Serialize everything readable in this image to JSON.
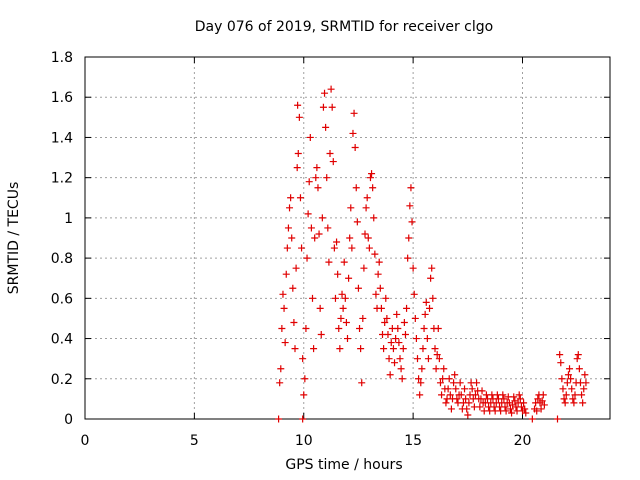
{
  "chart_data": {
    "type": "scatter",
    "title": "Day 076 of 2019, SRMTID for receiver clgo",
    "xlabel": "GPS time / hours",
    "ylabel": "SRMTID / TECUs",
    "xlim": [
      0,
      24
    ],
    "ylim": [
      0,
      1.8
    ],
    "xticks": [
      0,
      5,
      10,
      15,
      20
    ],
    "xtick_labels": [
      "0",
      "5",
      "10",
      "15",
      "20"
    ],
    "yticks": [
      0,
      0.2,
      0.4,
      0.6,
      0.8,
      1.0,
      1.2,
      1.4,
      1.6,
      1.8
    ],
    "ytick_labels": [
      "0",
      "0.2",
      "0.4",
      "0.6",
      "0.8",
      "1",
      "1.2",
      "1.4",
      "1.6",
      "1.8"
    ],
    "grid": true,
    "marker": "+",
    "color": "#e00000",
    "series": [
      {
        "name": "SRMTID",
        "points": [
          [
            8.85,
            0.0
          ],
          [
            9.95,
            0.0
          ],
          [
            20.45,
            0.0
          ],
          [
            21.6,
            0.0
          ],
          [
            8.9,
            0.18
          ],
          [
            8.95,
            0.25
          ],
          [
            9.0,
            0.45
          ],
          [
            9.05,
            0.62
          ],
          [
            9.1,
            0.55
          ],
          [
            9.15,
            0.38
          ],
          [
            9.2,
            0.72
          ],
          [
            9.25,
            0.85
          ],
          [
            9.3,
            0.95
          ],
          [
            9.35,
            1.05
          ],
          [
            9.4,
            1.1
          ],
          [
            9.45,
            0.9
          ],
          [
            9.5,
            0.65
          ],
          [
            9.55,
            0.48
          ],
          [
            9.6,
            0.35
          ],
          [
            9.65,
            0.75
          ],
          [
            9.7,
            1.25
          ],
          [
            9.75,
            1.32
          ],
          [
            9.72,
            1.56
          ],
          [
            9.8,
            1.5
          ],
          [
            9.85,
            1.1
          ],
          [
            9.9,
            0.85
          ],
          [
            9.95,
            0.3
          ],
          [
            10.0,
            0.12
          ],
          [
            10.05,
            0.2
          ],
          [
            10.1,
            0.45
          ],
          [
            10.15,
            0.8
          ],
          [
            10.2,
            1.02
          ],
          [
            10.25,
            1.18
          ],
          [
            10.3,
            1.4
          ],
          [
            10.35,
            0.95
          ],
          [
            10.4,
            0.6
          ],
          [
            10.45,
            0.35
          ],
          [
            10.5,
            0.9
          ],
          [
            10.55,
            1.2
          ],
          [
            10.6,
            1.25
          ],
          [
            10.65,
            1.15
          ],
          [
            10.7,
            0.92
          ],
          [
            10.75,
            0.55
          ],
          [
            10.8,
            0.42
          ],
          [
            10.85,
            1.0
          ],
          [
            10.9,
            1.55
          ],
          [
            10.95,
            1.62
          ],
          [
            11.0,
            1.45
          ],
          [
            11.05,
            1.2
          ],
          [
            11.1,
            0.95
          ],
          [
            11.15,
            0.78
          ],
          [
            11.2,
            1.32
          ],
          [
            11.25,
            1.64
          ],
          [
            11.3,
            1.55
          ],
          [
            11.35,
            1.28
          ],
          [
            11.4,
            0.85
          ],
          [
            11.45,
            0.6
          ],
          [
            11.5,
            0.88
          ],
          [
            11.55,
            0.72
          ],
          [
            11.6,
            0.45
          ],
          [
            11.65,
            0.35
          ],
          [
            11.7,
            0.5
          ],
          [
            11.75,
            0.62
          ],
          [
            11.8,
            0.55
          ],
          [
            11.85,
            0.78
          ],
          [
            11.9,
            0.6
          ],
          [
            11.95,
            0.48
          ],
          [
            12.0,
            0.4
          ],
          [
            12.05,
            0.7
          ],
          [
            12.1,
            0.9
          ],
          [
            12.15,
            1.05
          ],
          [
            12.2,
            0.85
          ],
          [
            12.25,
            1.42
          ],
          [
            12.3,
            1.52
          ],
          [
            12.35,
            1.35
          ],
          [
            12.4,
            1.15
          ],
          [
            12.45,
            0.98
          ],
          [
            12.5,
            0.65
          ],
          [
            12.55,
            0.45
          ],
          [
            12.6,
            0.35
          ],
          [
            12.65,
            0.18
          ],
          [
            12.7,
            0.5
          ],
          [
            12.75,
            0.75
          ],
          [
            12.8,
            0.92
          ],
          [
            12.85,
            1.05
          ],
          [
            12.9,
            1.1
          ],
          [
            12.95,
            0.9
          ],
          [
            13.0,
            0.85
          ],
          [
            13.05,
            1.2
          ],
          [
            13.1,
            1.22
          ],
          [
            13.15,
            1.15
          ],
          [
            13.2,
            1.0
          ],
          [
            13.25,
            0.82
          ],
          [
            13.3,
            0.62
          ],
          [
            13.35,
            0.55
          ],
          [
            13.4,
            0.72
          ],
          [
            13.45,
            0.78
          ],
          [
            13.5,
            0.65
          ],
          [
            13.55,
            0.55
          ],
          [
            13.6,
            0.42
          ],
          [
            13.65,
            0.35
          ],
          [
            13.7,
            0.48
          ],
          [
            13.75,
            0.6
          ],
          [
            13.8,
            0.5
          ],
          [
            13.85,
            0.42
          ],
          [
            13.9,
            0.3
          ],
          [
            13.95,
            0.22
          ],
          [
            14.0,
            0.38
          ],
          [
            14.05,
            0.45
          ],
          [
            14.1,
            0.35
          ],
          [
            14.15,
            0.28
          ],
          [
            14.2,
            0.4
          ],
          [
            14.25,
            0.52
          ],
          [
            14.3,
            0.45
          ],
          [
            14.35,
            0.38
          ],
          [
            14.4,
            0.3
          ],
          [
            14.45,
            0.25
          ],
          [
            14.5,
            0.2
          ],
          [
            14.55,
            0.35
          ],
          [
            14.6,
            0.48
          ],
          [
            14.65,
            0.42
          ],
          [
            14.7,
            0.55
          ],
          [
            14.75,
            0.8
          ],
          [
            14.8,
            0.9
          ],
          [
            14.85,
            1.06
          ],
          [
            14.9,
            1.15
          ],
          [
            14.95,
            0.98
          ],
          [
            15.0,
            0.75
          ],
          [
            15.05,
            0.62
          ],
          [
            15.1,
            0.5
          ],
          [
            15.15,
            0.4
          ],
          [
            15.2,
            0.3
          ],
          [
            15.25,
            0.2
          ],
          [
            15.3,
            0.12
          ],
          [
            15.35,
            0.18
          ],
          [
            15.4,
            0.25
          ],
          [
            15.45,
            0.35
          ],
          [
            15.5,
            0.45
          ],
          [
            15.55,
            0.52
          ],
          [
            15.6,
            0.58
          ],
          [
            15.65,
            0.4
          ],
          [
            15.7,
            0.3
          ],
          [
            15.75,
            0.55
          ],
          [
            15.8,
            0.7
          ],
          [
            15.85,
            0.75
          ],
          [
            15.9,
            0.6
          ],
          [
            15.95,
            0.45
          ],
          [
            16.0,
            0.35
          ],
          [
            16.05,
            0.25
          ],
          [
            16.1,
            0.32
          ],
          [
            16.15,
            0.45
          ],
          [
            16.2,
            0.3
          ],
          [
            16.25,
            0.18
          ],
          [
            16.3,
            0.12
          ],
          [
            16.35,
            0.2
          ],
          [
            16.4,
            0.25
          ],
          [
            16.45,
            0.15
          ],
          [
            16.5,
            0.08
          ],
          [
            16.55,
            0.1
          ],
          [
            16.6,
            0.15
          ],
          [
            16.65,
            0.2
          ],
          [
            16.7,
            0.12
          ],
          [
            16.75,
            0.05
          ],
          [
            16.8,
            0.1
          ],
          [
            16.85,
            0.18
          ],
          [
            16.9,
            0.22
          ],
          [
            16.95,
            0.15
          ],
          [
            17.0,
            0.1
          ],
          [
            17.05,
            0.08
          ],
          [
            17.1,
            0.12
          ],
          [
            17.15,
            0.18
          ],
          [
            17.2,
            0.12
          ],
          [
            17.25,
            0.05
          ],
          [
            17.3,
            0.08
          ],
          [
            17.35,
            0.15
          ],
          [
            17.4,
            0.1
          ],
          [
            17.45,
            0.05
          ],
          [
            17.5,
            0.02
          ],
          [
            17.55,
            0.08
          ],
          [
            17.6,
            0.12
          ],
          [
            17.65,
            0.18
          ],
          [
            17.7,
            0.15
          ],
          [
            17.75,
            0.1
          ],
          [
            17.8,
            0.06
          ],
          [
            17.85,
            0.12
          ],
          [
            17.9,
            0.18
          ],
          [
            17.95,
            0.14
          ],
          [
            18.0,
            0.1
          ],
          [
            18.05,
            0.06
          ],
          [
            18.1,
            0.1
          ],
          [
            18.15,
            0.14
          ],
          [
            18.2,
            0.08
          ],
          [
            18.25,
            0.04
          ],
          [
            18.3,
            0.08
          ],
          [
            18.35,
            0.12
          ],
          [
            18.4,
            0.1
          ],
          [
            18.45,
            0.06
          ],
          [
            18.5,
            0.04
          ],
          [
            18.55,
            0.08
          ],
          [
            18.6,
            0.12
          ],
          [
            18.65,
            0.1
          ],
          [
            18.7,
            0.06
          ],
          [
            18.75,
            0.04
          ],
          [
            18.8,
            0.08
          ],
          [
            18.85,
            0.12
          ],
          [
            18.9,
            0.1
          ],
          [
            18.95,
            0.06
          ],
          [
            19.0,
            0.04
          ],
          [
            19.05,
            0.08
          ],
          [
            19.1,
            0.12
          ],
          [
            19.15,
            0.1
          ],
          [
            19.2,
            0.06
          ],
          [
            19.25,
            0.04
          ],
          [
            19.3,
            0.08
          ],
          [
            19.35,
            0.11
          ],
          [
            19.4,
            0.08
          ],
          [
            19.45,
            0.05
          ],
          [
            19.5,
            0.03
          ],
          [
            19.55,
            0.07
          ],
          [
            19.6,
            0.11
          ],
          [
            19.65,
            0.09
          ],
          [
            19.7,
            0.06
          ],
          [
            19.75,
            0.04
          ],
          [
            19.8,
            0.08
          ],
          [
            19.85,
            0.12
          ],
          [
            19.9,
            0.1
          ],
          [
            19.95,
            0.06
          ],
          [
            20.0,
            0.04
          ],
          [
            20.05,
            0.08
          ],
          [
            20.1,
            0.05
          ],
          [
            20.15,
            0.03
          ],
          [
            20.55,
            0.05
          ],
          [
            20.6,
            0.08
          ],
          [
            20.65,
            0.04
          ],
          [
            20.7,
            0.1
          ],
          [
            20.75,
            0.12
          ],
          [
            20.8,
            0.08
          ],
          [
            20.85,
            0.05
          ],
          [
            20.9,
            0.09
          ],
          [
            20.95,
            0.12
          ],
          [
            21.0,
            0.07
          ],
          [
            21.7,
            0.32
          ],
          [
            21.75,
            0.28
          ],
          [
            21.8,
            0.2
          ],
          [
            21.85,
            0.15
          ],
          [
            21.9,
            0.1
          ],
          [
            21.95,
            0.08
          ],
          [
            22.0,
            0.12
          ],
          [
            22.05,
            0.18
          ],
          [
            22.1,
            0.22
          ],
          [
            22.15,
            0.25
          ],
          [
            22.2,
            0.2
          ],
          [
            22.25,
            0.15
          ],
          [
            22.3,
            0.1
          ],
          [
            22.35,
            0.08
          ],
          [
            22.4,
            0.12
          ],
          [
            22.45,
            0.18
          ],
          [
            22.5,
            0.3
          ],
          [
            22.55,
            0.32
          ],
          [
            22.6,
            0.25
          ],
          [
            22.65,
            0.18
          ],
          [
            22.7,
            0.12
          ],
          [
            22.75,
            0.08
          ],
          [
            22.8,
            0.15
          ],
          [
            22.85,
            0.22
          ],
          [
            22.9,
            0.18
          ]
        ]
      }
    ]
  }
}
